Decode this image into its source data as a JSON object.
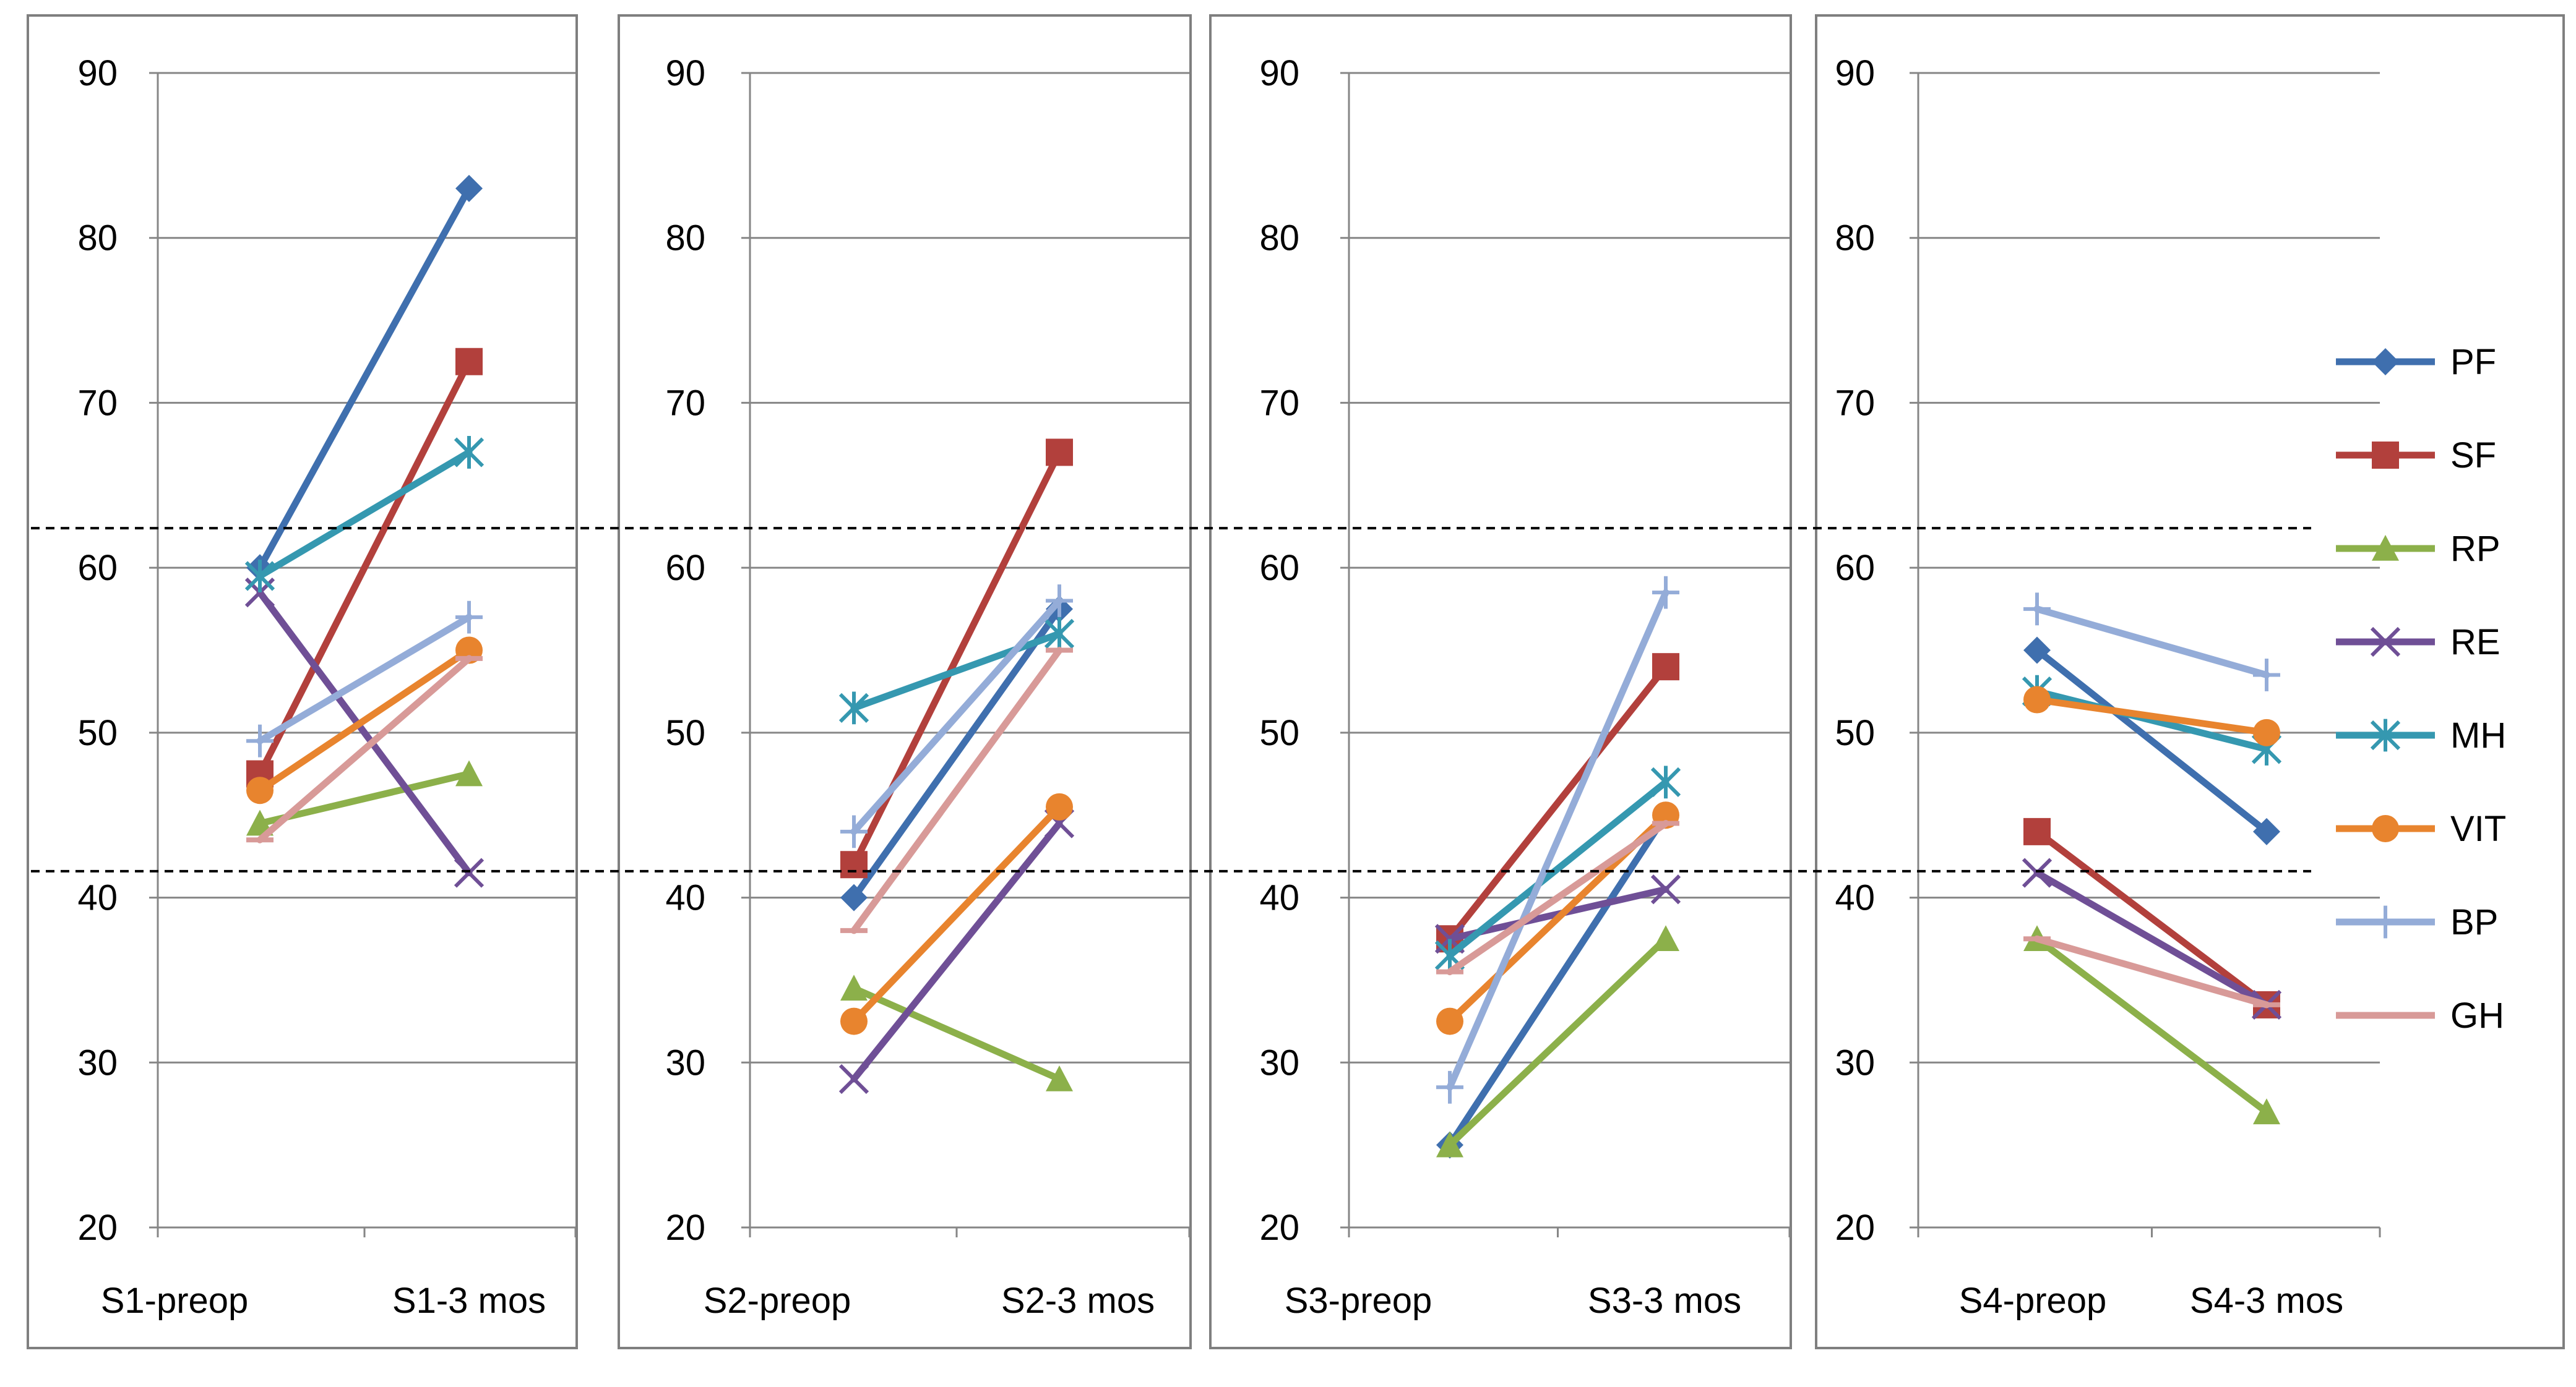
{
  "chart_data": {
    "type": "line",
    "y_ticks": [
      20,
      30,
      40,
      50,
      60,
      70,
      80,
      90
    ],
    "ylim": [
      20,
      90
    ],
    "reference_lines": [
      62.4,
      41.6
    ],
    "series_styles": [
      {
        "name": "PF",
        "color": "#3F6FAE",
        "marker": "diamond"
      },
      {
        "name": "SF",
        "color": "#B2403C",
        "marker": "square"
      },
      {
        "name": "RP",
        "color": "#8CB04A",
        "marker": "triangle"
      },
      {
        "name": "RE",
        "color": "#6F4F96",
        "marker": "x"
      },
      {
        "name": "MH",
        "color": "#3598B0",
        "marker": "star"
      },
      {
        "name": "VIT",
        "color": "#E8842E",
        "marker": "circle"
      },
      {
        "name": "BP",
        "color": "#94ACD8",
        "marker": "plus"
      },
      {
        "name": "GH",
        "color": "#D89A98",
        "marker": "dash"
      }
    ],
    "panels": [
      {
        "categories": [
          "S1-preop",
          "S1-3 mos"
        ],
        "series": [
          {
            "name": "PF",
            "values": [
              60,
              83
            ]
          },
          {
            "name": "SF",
            "values": [
              47.5,
              72.5
            ]
          },
          {
            "name": "RP",
            "values": [
              44.5,
              47.5
            ]
          },
          {
            "name": "RE",
            "values": [
              58.5,
              41.5
            ]
          },
          {
            "name": "MH",
            "values": [
              59.5,
              67
            ]
          },
          {
            "name": "VIT",
            "values": [
              46.5,
              55
            ]
          },
          {
            "name": "BP",
            "values": [
              49.5,
              57
            ]
          },
          {
            "name": "GH",
            "values": [
              43.5,
              54.5
            ]
          }
        ]
      },
      {
        "categories": [
          "S2-preop",
          "S2-3 mos"
        ],
        "series": [
          {
            "name": "PF",
            "values": [
              40,
              57.5
            ]
          },
          {
            "name": "SF",
            "values": [
              42,
              67
            ]
          },
          {
            "name": "RP",
            "values": [
              34.5,
              29
            ]
          },
          {
            "name": "RE",
            "values": [
              29,
              44.5
            ]
          },
          {
            "name": "MH",
            "values": [
              51.5,
              56
            ]
          },
          {
            "name": "VIT",
            "values": [
              32.5,
              45.5
            ]
          },
          {
            "name": "BP",
            "values": [
              44,
              58
            ]
          },
          {
            "name": "GH",
            "values": [
              38,
              55
            ]
          }
        ]
      },
      {
        "categories": [
          "S3-preop",
          "S3-3 mos"
        ],
        "series": [
          {
            "name": "PF",
            "values": [
              25,
              45
            ]
          },
          {
            "name": "SF",
            "values": [
              37.5,
              54
            ]
          },
          {
            "name": "RP",
            "values": [
              25,
              37.5
            ]
          },
          {
            "name": "RE",
            "values": [
              37.5,
              40.5
            ]
          },
          {
            "name": "MH",
            "values": [
              36.5,
              47
            ]
          },
          {
            "name": "VIT",
            "values": [
              32.5,
              45
            ]
          },
          {
            "name": "BP",
            "values": [
              28.5,
              58.5
            ]
          },
          {
            "name": "GH",
            "values": [
              35.5,
              44.5
            ]
          }
        ]
      },
      {
        "categories": [
          "S4-preop",
          "S4-3 mos"
        ],
        "series": [
          {
            "name": "PF",
            "values": [
              55,
              44
            ]
          },
          {
            "name": "SF",
            "values": [
              44,
              33.5
            ]
          },
          {
            "name": "RP",
            "values": [
              37.5,
              27
            ]
          },
          {
            "name": "RE",
            "values": [
              41.5,
              33.5
            ]
          },
          {
            "name": "MH",
            "values": [
              52.5,
              49
            ]
          },
          {
            "name": "VIT",
            "values": [
              52,
              50
            ]
          },
          {
            "name": "BP",
            "values": [
              57.5,
              53.5
            ]
          },
          {
            "name": "GH",
            "values": [
              37.5,
              33.5
            ]
          }
        ]
      }
    ],
    "legend": {
      "placement": "right",
      "entries": [
        "PF",
        "SF",
        "RP",
        "RE",
        "MH",
        "VIT",
        "BP",
        "GH"
      ]
    }
  }
}
